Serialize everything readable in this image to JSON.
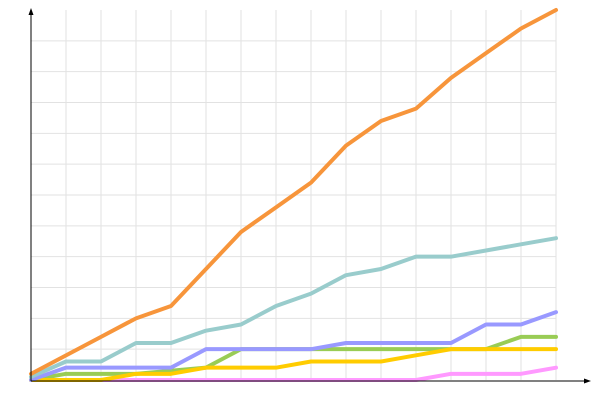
{
  "chart_data": {
    "type": "line",
    "x": [
      0,
      1,
      2,
      3,
      4,
      5,
      6,
      7,
      8,
      9,
      10,
      11,
      12,
      13,
      14,
      15
    ],
    "xlim": [
      0,
      15
    ],
    "xticks": [
      1,
      2,
      3,
      4,
      5,
      6,
      7,
      8,
      9,
      10,
      11,
      12,
      13,
      14,
      15
    ],
    "ylim": [
      0,
      12
    ],
    "yticks": [
      1,
      2,
      3,
      4,
      5,
      6,
      7,
      8,
      9,
      10,
      11
    ],
    "grid": true,
    "series": [
      {
        "color": "#ff99ff",
        "values": [
          0,
          0,
          0,
          0,
          0,
          0,
          0,
          0,
          0,
          0,
          0,
          0,
          0.2,
          0.2,
          0.2,
          0.4
        ]
      },
      {
        "color": "#99cc55",
        "values": [
          0,
          0.2,
          0.2,
          0.2,
          0.3,
          0.4,
          1.0,
          1.0,
          1.0,
          1.0,
          1.0,
          1.0,
          1.0,
          1.0,
          1.4,
          1.4
        ]
      },
      {
        "color": "#ffcc00",
        "values": [
          0,
          0,
          0,
          0.2,
          0.2,
          0.4,
          0.4,
          0.4,
          0.6,
          0.6,
          0.6,
          0.8,
          1.0,
          1.0,
          1.0,
          1.0
        ]
      },
      {
        "color": "#9999ff",
        "values": [
          0,
          0.4,
          0.4,
          0.4,
          0.4,
          1.0,
          1.0,
          1.0,
          1.0,
          1.2,
          1.2,
          1.2,
          1.2,
          1.8,
          1.8,
          2.2
        ]
      },
      {
        "color": "#99cccc",
        "values": [
          0.1,
          0.6,
          0.6,
          1.2,
          1.2,
          1.6,
          1.8,
          2.4,
          2.8,
          3.4,
          3.6,
          4.0,
          4.0,
          4.2,
          4.4,
          4.6
        ]
      },
      {
        "color": "#f7953b",
        "values": [
          0.2,
          0.8,
          1.4,
          2.0,
          2.4,
          3.6,
          4.8,
          5.6,
          6.4,
          7.6,
          8.4,
          8.8,
          9.8,
          10.6,
          11.4,
          12.0
        ]
      }
    ]
  }
}
